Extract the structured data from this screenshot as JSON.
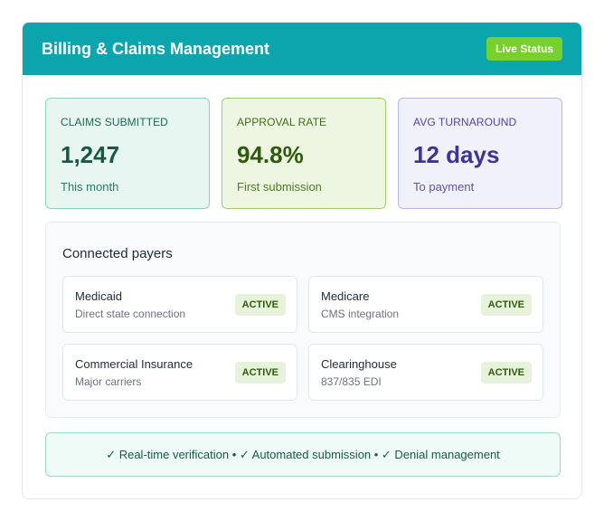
{
  "header": {
    "title": "Billing & Claims Management",
    "live_badge": "Live Status"
  },
  "stats": [
    {
      "label": "CLAIMS SUBMITTED",
      "value": "1,247",
      "sub": "This month"
    },
    {
      "label": "APPROVAL RATE",
      "value": "94.8%",
      "sub": "First submission"
    },
    {
      "label": "AVG TURNAROUND",
      "value": "12 days",
      "sub": "To payment"
    }
  ],
  "payers": {
    "title": "Connected payers",
    "items": [
      {
        "name": "Medicaid",
        "desc": "Direct state connection",
        "status": "ACTIVE"
      },
      {
        "name": "Medicare",
        "desc": "CMS integration",
        "status": "ACTIVE"
      },
      {
        "name": "Commercial Insurance",
        "desc": "Major carriers",
        "status": "ACTIVE"
      },
      {
        "name": "Clearinghouse",
        "desc": "837/835 EDI",
        "status": "ACTIVE"
      }
    ]
  },
  "features": {
    "text": "✓ Real-time verification • ✓ Automated submission • ✓ Denial management"
  },
  "colors": {
    "header_bg": "#0ba5ae",
    "live_badge_bg": "#77d12c",
    "active_badge_bg": "#e6f2da"
  }
}
